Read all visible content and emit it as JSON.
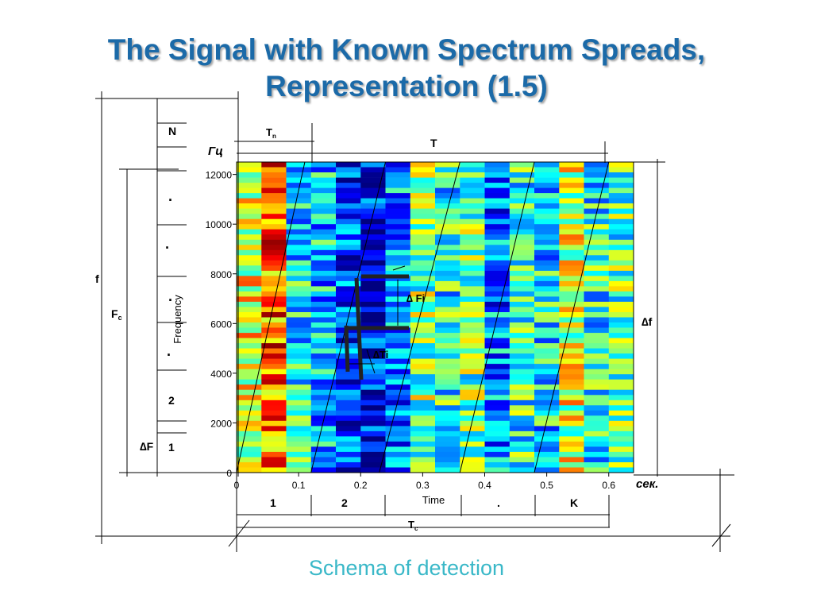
{
  "title": {
    "line1": "The Signal with  Known Spectrum Spreads,",
    "line2": "Representation (1.5)"
  },
  "caption": "Schema of detection",
  "labels": {
    "hz_unit": "Гц",
    "sec_unit": "сек.",
    "f": "f",
    "Fc_main": "F",
    "Fc_sub": "c",
    "dF": "∆F",
    "df": "∆f",
    "dFi": "∆ Fi",
    "dTi": "∆Ti",
    "T": "T",
    "Tn_main": "T",
    "Tn_sub": "n",
    "Tc_main": "T",
    "Tc_sub": "c",
    "channel_N": "N",
    "channel_2": "2",
    "channel_1": "1",
    "channel_dots": [
      "·",
      "·",
      "·",
      "·"
    ],
    "segments": [
      "1",
      "2",
      ".",
      "K"
    ]
  },
  "chart_data": {
    "type": "heatmap",
    "title": "",
    "xlabel": "Time",
    "ylabel": "Frequency",
    "xlim": [
      0,
      0.64
    ],
    "ylim": [
      0,
      12500
    ],
    "x_ticks": [
      "0",
      "0.1",
      "0.2",
      "0.3",
      "0.4",
      "0.5",
      "0.6"
    ],
    "x_tick_values": [
      0,
      0.1,
      0.2,
      0.3,
      0.4,
      0.5,
      0.6
    ],
    "y_ticks": [
      "0",
      "2000",
      "4000",
      "6000",
      "8000",
      "10000",
      "12000"
    ],
    "y_tick_values": [
      0,
      2000,
      4000,
      6000,
      8000,
      10000,
      12000
    ],
    "columns": [
      {
        "x_start": 0.0,
        "x_end": 0.04,
        "level": 0.6
      },
      {
        "x_start": 0.04,
        "x_end": 0.08,
        "level": 0.78
      },
      {
        "x_start": 0.08,
        "x_end": 0.12,
        "level": 0.38
      },
      {
        "x_start": 0.12,
        "x_end": 0.16,
        "level": 0.32
      },
      {
        "x_start": 0.16,
        "x_end": 0.2,
        "level": 0.18
      },
      {
        "x_start": 0.2,
        "x_end": 0.24,
        "level": 0.12
      },
      {
        "x_start": 0.24,
        "x_end": 0.28,
        "level": 0.28
      },
      {
        "x_start": 0.28,
        "x_end": 0.32,
        "level": 0.5
      },
      {
        "x_start": 0.32,
        "x_end": 0.36,
        "level": 0.4
      },
      {
        "x_start": 0.36,
        "x_end": 0.4,
        "level": 0.48
      },
      {
        "x_start": 0.4,
        "x_end": 0.44,
        "level": 0.26
      },
      {
        "x_start": 0.44,
        "x_end": 0.48,
        "level": 0.42
      },
      {
        "x_start": 0.48,
        "x_end": 0.52,
        "level": 0.36
      },
      {
        "x_start": 0.52,
        "x_end": 0.56,
        "level": 0.58
      },
      {
        "x_start": 0.56,
        "x_end": 0.6,
        "level": 0.4
      },
      {
        "x_start": 0.6,
        "x_end": 0.64,
        "level": 0.46
      }
    ],
    "chirp_lines": [
      {
        "x0": 0.0,
        "y0": 0,
        "x1": 0.11,
        "y1": 12500
      },
      {
        "x0": 0.12,
        "y0": 0,
        "x1": 0.24,
        "y1": 12500
      },
      {
        "x0": 0.23,
        "y0": 0,
        "x1": 0.36,
        "y1": 12500
      },
      {
        "x0": 0.36,
        "y0": 0,
        "x1": 0.48,
        "y1": 12500
      },
      {
        "x0": 0.48,
        "y0": 0,
        "x1": 0.6,
        "y1": 12500
      }
    ],
    "colors": {
      "low": "#0000c8",
      "mid": "#00e0ff",
      "center": "#a0ff60",
      "high": "#ffd000",
      "top": "#c80000"
    }
  }
}
